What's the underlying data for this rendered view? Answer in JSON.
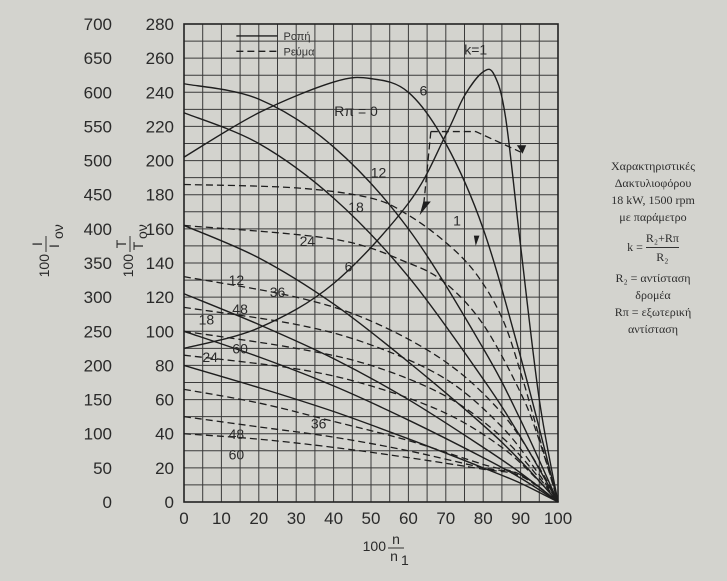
{
  "chart_data": {
    "type": "line",
    "x_ticks": [
      "0",
      "10",
      "20",
      "30",
      "40",
      "50",
      "60",
      "70",
      "80",
      "90",
      "100"
    ],
    "y_left_ticks": [
      "0",
      "50",
      "100",
      "150",
      "200",
      "250",
      "300",
      "350",
      "400",
      "450",
      "500",
      "550",
      "600",
      "650",
      "700"
    ],
    "y_right_ticks": [
      "0",
      "20",
      "40",
      "60",
      "80",
      "100",
      "120",
      "140",
      "160",
      "180",
      "200",
      "220",
      "240",
      "260",
      "280"
    ],
    "xlabel": {
      "num": "n",
      "den": "n",
      "den_sub": "1",
      "prefix": "100"
    },
    "ylabel_current": {
      "prefix": "100",
      "num": "I",
      "den": "I",
      "den_sub": "ον"
    },
    "ylabel_torque": {
      "prefix": "100",
      "num": "T",
      "den": "T",
      "den_sub": "ον"
    },
    "xlim": [
      0,
      100
    ],
    "ylim_torque": [
      0,
      280
    ],
    "ylim_current": [
      0,
      700
    ],
    "grid": true,
    "legend": {
      "placement": "top-left",
      "entries": [
        {
          "name": "Ροπή",
          "style": "solid"
        },
        {
          "name": "Ρεύμα",
          "style": "dashed"
        }
      ]
    },
    "torque_series": [
      {
        "name": "k=1",
        "x": [
          0,
          20,
          40,
          60,
          70,
          75,
          80,
          83,
          86,
          90,
          95,
          100
        ],
        "y": [
          90,
          102,
          128,
          175,
          215,
          238,
          252,
          250,
          225,
          150,
          60,
          0
        ]
      },
      {
        "name": "6",
        "x": [
          0,
          20,
          40,
          50,
          60,
          70,
          80,
          90,
          100
        ],
        "y": [
          202,
          228,
          246,
          248,
          240,
          210,
          160,
          85,
          0
        ]
      },
      {
        "name": "12",
        "x": [
          0,
          20,
          40,
          60,
          80,
          90,
          100
        ],
        "y": [
          245,
          236,
          208,
          160,
          90,
          48,
          0
        ]
      },
      {
        "name": "18",
        "x": [
          0,
          20,
          40,
          60,
          80,
          90,
          100
        ],
        "y": [
          228,
          210,
          178,
          132,
          72,
          38,
          0
        ]
      },
      {
        "name": "24",
        "x": [
          0,
          20,
          40,
          60,
          80,
          90,
          100
        ],
        "y": [
          162,
          143,
          116,
          82,
          45,
          24,
          0
        ]
      },
      {
        "name": "36",
        "x": [
          0,
          20,
          40,
          60,
          80,
          90,
          100
        ],
        "y": [
          122,
          104,
          84,
          60,
          32,
          17,
          0
        ]
      },
      {
        "name": "48",
        "x": [
          0,
          20,
          40,
          60,
          80,
          90,
          100
        ],
        "y": [
          100,
          85,
          68,
          48,
          26,
          14,
          0
        ]
      },
      {
        "name": "60",
        "x": [
          0,
          20,
          40,
          60,
          80,
          90,
          100
        ],
        "y": [
          80,
          67,
          53,
          37,
          20,
          11,
          0
        ]
      }
    ],
    "current_series": [
      {
        "name": "Rπ=0",
        "x": [
          0,
          30,
          50,
          60,
          70,
          78,
          85,
          90,
          95,
          100
        ],
        "y": [
          465,
          460,
          445,
          420,
          380,
          335,
          270,
          190,
          95,
          0
        ]
      },
      {
        "name": "1",
        "x": [
          0,
          40,
          60,
          70,
          80,
          90,
          95,
          100
        ],
        "y": [
          405,
          385,
          350,
          320,
          260,
          160,
          90,
          0
        ]
      },
      {
        "name": "6",
        "x": [
          0,
          30,
          50,
          70,
          85,
          95,
          100
        ],
        "y": [
          330,
          300,
          265,
          205,
          130,
          50,
          0
        ]
      },
      {
        "name": "12",
        "x": [
          0,
          30,
          50,
          70,
          85,
          95,
          100
        ],
        "y": [
          285,
          260,
          230,
          180,
          110,
          40,
          0
        ]
      },
      {
        "name": "18",
        "x": [
          0,
          30,
          50,
          70,
          85,
          95,
          100
        ],
        "y": [
          250,
          225,
          200,
          155,
          95,
          35,
          0
        ]
      },
      {
        "name": "24",
        "x": [
          0,
          30,
          50,
          70,
          85,
          95,
          100
        ],
        "y": [
          215,
          195,
          170,
          130,
          80,
          30,
          0
        ]
      },
      {
        "name": "36",
        "x": [
          0,
          20,
          40,
          60,
          80,
          90,
          100
        ],
        "y": [
          165,
          145,
          118,
          90,
          55,
          40,
          0
        ]
      },
      {
        "name": "48",
        "x": [
          0,
          20,
          40,
          60,
          80,
          90,
          100
        ],
        "y": [
          125,
          110,
          95,
          75,
          50,
          40,
          0
        ]
      },
      {
        "name": "60",
        "x": [
          0,
          20,
          40,
          60,
          80,
          90,
          100
        ],
        "y": [
          100,
          92,
          80,
          65,
          48,
          38,
          0
        ]
      }
    ],
    "annotations": [
      {
        "text": "k=1"
      },
      {
        "text": "6"
      },
      {
        "text": "12"
      },
      {
        "text": "18"
      },
      {
        "text": "24"
      },
      {
        "text": "36"
      },
      {
        "text": "12"
      },
      {
        "text": "48"
      },
      {
        "text": "18"
      },
      {
        "text": "60"
      },
      {
        "text": "24"
      },
      {
        "text": "6"
      },
      {
        "text": "36"
      },
      {
        "text": "48"
      },
      {
        "text": "60"
      },
      {
        "text": "1"
      },
      {
        "text": "Rπ = 0"
      }
    ]
  },
  "notes": {
    "line1": "Χαρακτηριστικές",
    "line2": "Δακτυλιοφόρου",
    "line3": "18 kW, 1500 rpm",
    "line4": "με παράμετρο",
    "k_prefix": "k =",
    "k_num": "R₂+Rπ",
    "k_den": "R₂",
    "r2_a": "R₂ = αντίσταση",
    "r2_b": "δρομέα",
    "rp_a": "Rπ = εξωτερική",
    "rp_b": "αντίσταση"
  }
}
